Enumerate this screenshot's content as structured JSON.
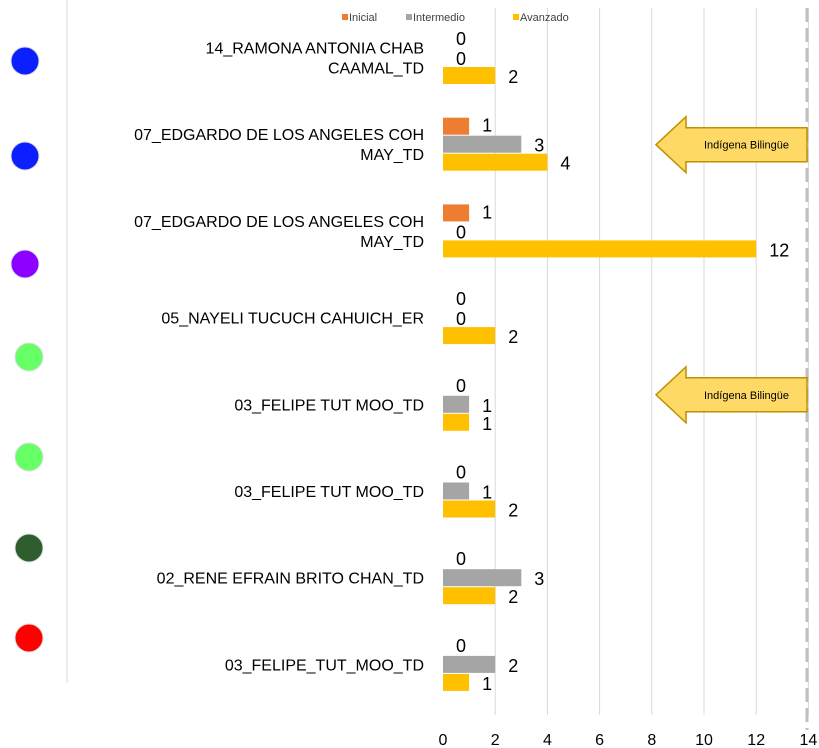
{
  "colors": {
    "inicial": "#ED7D31",
    "intermedio": "#A5A5A5",
    "avanzado": "#FFC000",
    "grid": "#D9D9D9",
    "dashed_line": "#BFBFBF",
    "callout_fill": "#FFD966",
    "callout_stroke": "#BF9000"
  },
  "chart_data": {
    "type": "bar",
    "orientation": "horizontal",
    "categories": [
      "14_RAMONA ANTONIA CHAB CAAMAL_TD",
      "07_EDGARDO DE LOS ANGELES COH MAY_TD",
      "07_EDGARDO DE LOS ANGELES COH MAY_TD",
      "05_NAYELI TUCUCH CAHUICH_ER",
      "03_FELIPE TUT MOO_TD",
      "03_FELIPE TUT MOO_TD",
      "02_RENE EFRAIN BRITO CHAN_TD",
      "03_FELIPE_TUT_MOO_TD"
    ],
    "category_lines": [
      [
        "14_RAMONA ANTONIA CHAB",
        "CAAMAL_TD"
      ],
      [
        "07_EDGARDO DE LOS ANGELES COH",
        "MAY_TD"
      ],
      [
        "07_EDGARDO DE LOS ANGELES COH",
        "MAY_TD"
      ],
      [
        "05_NAYELI TUCUCH CAHUICH_ER"
      ],
      [
        "03_FELIPE TUT MOO_TD"
      ],
      [
        "03_FELIPE TUT MOO_TD"
      ],
      [
        "02_RENE EFRAIN BRITO CHAN_TD"
      ],
      [
        "03_FELIPE_TUT_MOO_TD"
      ]
    ],
    "series": [
      {
        "name": "Inicial",
        "color_key": "inicial",
        "values": [
          0,
          1,
          1,
          0,
          null,
          null,
          null,
          null
        ]
      },
      {
        "name": "Intermedio",
        "color_key": "intermedio",
        "values": [
          0,
          3,
          0,
          0,
          1,
          1,
          3,
          2
        ]
      },
      {
        "name": "Avanzado",
        "color_key": "avanzado",
        "values": [
          2,
          4,
          12,
          2,
          1,
          2,
          2,
          1
        ]
      }
    ],
    "data_labels": [
      [
        "0",
        "1",
        "1",
        "0",
        "0",
        "0",
        "0",
        "0"
      ],
      [
        "0",
        "3",
        "0",
        "0",
        "1",
        "1",
        "3",
        "2"
      ],
      [
        "2",
        "4",
        "12",
        "2",
        "1",
        "2",
        "2",
        "1"
      ]
    ],
    "x_ticks": [
      "0",
      "2",
      "4",
      "6",
      "8",
      "10",
      "12",
      "14"
    ],
    "xlim": [
      0,
      14
    ],
    "grid": true,
    "legend_position": "top",
    "title": "",
    "xlabel": "",
    "ylabel": ""
  },
  "status_dots": [
    "#0B1FFF",
    "#0B1FFF",
    "#8B00FF",
    "#66FF66",
    "#66FF66",
    "#66FF66",
    "#2E5E2E",
    "#FF0000"
  ],
  "callouts": [
    {
      "text": "Indígena Bilingüe",
      "row": 1
    },
    {
      "text": "Indígena Bilingüe",
      "row": 4
    }
  ]
}
